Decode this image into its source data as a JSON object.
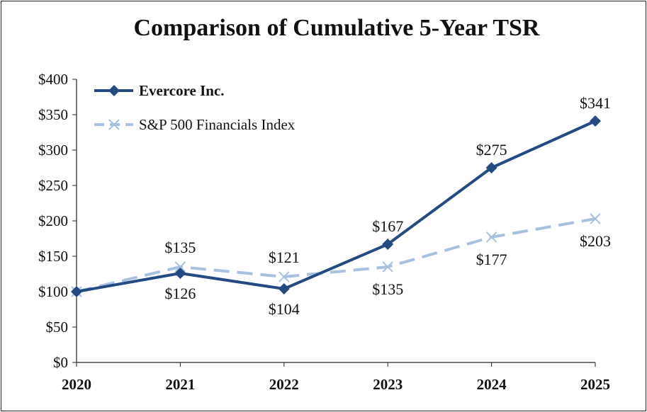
{
  "chart_data": {
    "type": "line",
    "title": "Comparison of Cumulative 5-Year TSR",
    "categories": [
      "2020",
      "2021",
      "2022",
      "2023",
      "2024",
      "2025"
    ],
    "ylim": [
      0,
      400
    ],
    "yticks": [
      0,
      50,
      100,
      150,
      200,
      250,
      300,
      350,
      400
    ],
    "ytick_labels": [
      "$0",
      "$50",
      "$100",
      "$150",
      "$200",
      "$250",
      "$300",
      "$350",
      "$400"
    ],
    "grid": false,
    "legend_position": "top-left",
    "series": [
      {
        "name": "Evercore Inc.",
        "values": [
          100,
          126,
          104,
          167,
          275,
          341
        ],
        "labels": [
          "",
          "$126",
          "$104",
          "$167",
          "$275",
          "$341"
        ],
        "color": "#244a83",
        "marker": "diamond",
        "line_style": "solid"
      },
      {
        "name": "S&P 500 Financials Index",
        "values": [
          100,
          135,
          121,
          135,
          177,
          203
        ],
        "labels": [
          "",
          "$135",
          "$121",
          "$135",
          "$177",
          "$203"
        ],
        "color": "#a9c1e0",
        "marker": "x",
        "line_style": "dashed"
      }
    ]
  }
}
